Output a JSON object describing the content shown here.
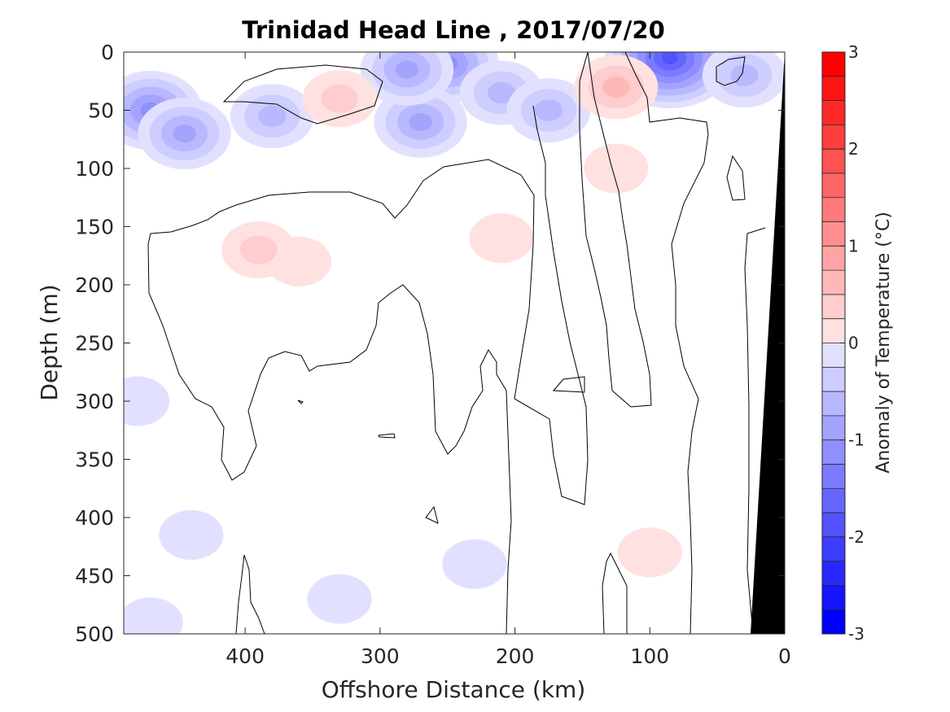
{
  "chart_data": {
    "type": "heatmap",
    "subtype": "filled-contour section",
    "title": "Trinidad Head Line , 2017/07/20",
    "xlabel": "Offshore Distance (km)",
    "ylabel": "Depth (m)",
    "colorbar_label": "Anomaly of Temperature (°C)",
    "xlim": [
      490,
      0
    ],
    "ylim": [
      0,
      500
    ],
    "x_reversed": true,
    "y_reversed": true,
    "x_ticks": [
      400,
      300,
      200,
      100,
      0
    ],
    "y_ticks": [
      0,
      50,
      100,
      150,
      200,
      250,
      300,
      350,
      400,
      450,
      500
    ],
    "colorbar": {
      "range": [
        -3,
        3
      ],
      "step": 0.25,
      "ticks": [
        3,
        2,
        1,
        0,
        -1,
        -2,
        -3
      ],
      "cold_color": "#0000ff",
      "warm_color": "#ff0000",
      "zero_color": "#ffffff"
    },
    "zero_contour_color": "#000000",
    "bathymetry_color": "#000000",
    "bathymetry": [
      {
        "distance": 0,
        "depth": 0
      },
      {
        "distance": 25,
        "depth": 500
      }
    ],
    "anomaly_regions": [
      {
        "x": 470,
        "y": 50,
        "value": -1.25
      },
      {
        "x": 445,
        "y": 70,
        "value": -1.0
      },
      {
        "x": 250,
        "y": 10,
        "value": -1.25
      },
      {
        "x": 270,
        "y": 60,
        "value": -1.0
      },
      {
        "x": 380,
        "y": 55,
        "value": -0.75
      },
      {
        "x": 210,
        "y": 35,
        "value": -0.75
      },
      {
        "x": 175,
        "y": 50,
        "value": -0.75
      },
      {
        "x": 280,
        "y": 15,
        "value": -1.0
      },
      {
        "x": 85,
        "y": 5,
        "value": -2.0
      },
      {
        "x": 30,
        "y": 20,
        "value": -0.75
      },
      {
        "x": 330,
        "y": 40,
        "value": 0.5
      },
      {
        "x": 125,
        "y": 30,
        "value": 0.75
      },
      {
        "x": 125,
        "y": 100,
        "value": 0.25
      },
      {
        "x": 360,
        "y": 180,
        "value": 0.25
      },
      {
        "x": 390,
        "y": 170,
        "value": 0.5
      },
      {
        "x": 210,
        "y": 160,
        "value": 0.25
      },
      {
        "x": 100,
        "y": 430,
        "value": 0.25
      },
      {
        "x": 330,
        "y": 470,
        "value": -0.25
      },
      {
        "x": 230,
        "y": 440,
        "value": -0.25
      },
      {
        "x": 480,
        "y": 300,
        "value": -0.25
      },
      {
        "x": 440,
        "y": 415,
        "value": -0.25
      },
      {
        "x": 470,
        "y": 490,
        "value": -0.25
      }
    ]
  }
}
